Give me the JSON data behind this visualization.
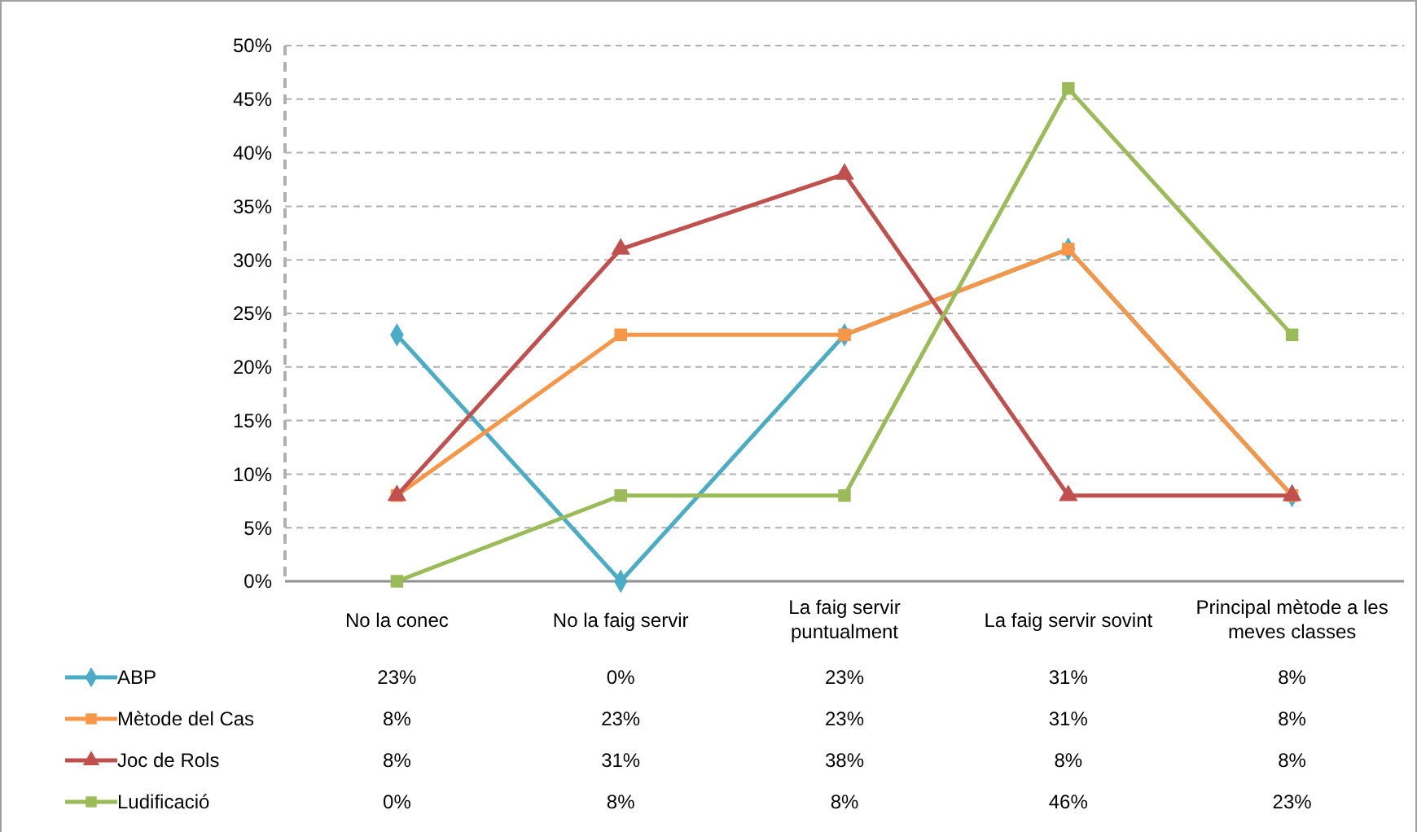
{
  "chart_data": {
    "type": "line",
    "categories": [
      "No la conec",
      "No la faig servir",
      "La faig servir puntualment",
      "La faig servir sovint",
      "Principal mètode a les meves classes"
    ],
    "ylim": [
      0,
      50
    ],
    "yticks": [
      {
        "value": 0,
        "label": "0%"
      },
      {
        "value": 5,
        "label": "5%"
      },
      {
        "value": 10,
        "label": "10%"
      },
      {
        "value": 15,
        "label": "15%"
      },
      {
        "value": 20,
        "label": "20%"
      },
      {
        "value": 25,
        "label": "25%"
      },
      {
        "value": 30,
        "label": "30%"
      },
      {
        "value": 35,
        "label": "35%"
      },
      {
        "value": 40,
        "label": "40%"
      },
      {
        "value": 45,
        "label": "45%"
      },
      {
        "value": 50,
        "label": "50%"
      }
    ],
    "grid": "y",
    "legend": "bottom",
    "line_style": "solid",
    "series": [
      {
        "name": "ABP",
        "color": "#4bacc6",
        "marker": "diamond",
        "values": [
          23,
          0,
          23,
          31,
          8
        ],
        "value_labels": [
          "23%",
          "0%",
          "23%",
          "31%",
          "8%"
        ]
      },
      {
        "name": "Mètode del Cas",
        "color": "#f79646",
        "marker": "square",
        "values": [
          8,
          23,
          23,
          31,
          8
        ],
        "value_labels": [
          "8%",
          "23%",
          "23%",
          "31%",
          "8%"
        ]
      },
      {
        "name": "Joc de Rols",
        "color": "#c0504d",
        "marker": "triangle",
        "values": [
          8,
          31,
          38,
          8,
          8
        ],
        "value_labels": [
          "8%",
          "31%",
          "38%",
          "8%",
          "8%"
        ]
      },
      {
        "name": "Ludificació",
        "color": "#9bbb59",
        "marker": "square",
        "values": [
          0,
          8,
          8,
          46,
          23
        ],
        "value_labels": [
          "0%",
          "8%",
          "8%",
          "46%",
          "23%"
        ]
      }
    ]
  }
}
